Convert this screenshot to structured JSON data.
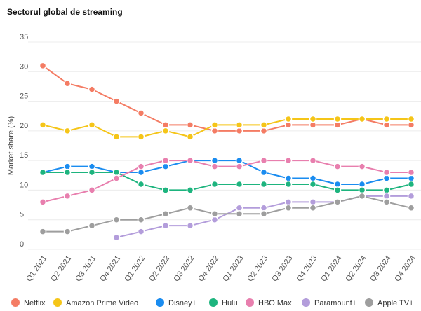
{
  "chart_data": {
    "type": "line",
    "title": "Sectorul global de streaming",
    "xlabel": "",
    "ylabel": "Market share (%)",
    "ylim": [
      0,
      35
    ],
    "yticks": [
      0,
      5,
      10,
      15,
      20,
      25,
      30,
      35
    ],
    "grid": true,
    "legend_position": "bottom",
    "categories": [
      "Q1 2021",
      "Q2 2021",
      "Q3 2021",
      "Q4 2021",
      "Q1 2022",
      "Q2 2022",
      "Q3 2022",
      "Q4 2022",
      "Q1 2023",
      "Q2 2023",
      "Q3 2023",
      "Q4 2023",
      "Q1 2024",
      "Q2 2024",
      "Q3 2024",
      "Q4 2024"
    ],
    "series": [
      {
        "name": "Netflix",
        "color": "#f47c64",
        "values": [
          31,
          28,
          27,
          25,
          23,
          21,
          21,
          20,
          20,
          20,
          21,
          21,
          21,
          22,
          21,
          21
        ]
      },
      {
        "name": "Amazon Prime Video",
        "color": "#f5c518",
        "values": [
          21,
          20,
          21,
          19,
          19,
          20,
          19,
          21,
          21,
          21,
          22,
          22,
          22,
          22,
          22,
          22
        ]
      },
      {
        "name": "Disney+",
        "color": "#1a8cf0",
        "values": [
          13,
          14,
          14,
          13,
          13,
          14,
          15,
          15,
          15,
          13,
          12,
          12,
          11,
          11,
          12,
          12
        ]
      },
      {
        "name": "Hulu",
        "color": "#1db47e",
        "values": [
          13,
          13,
          13,
          13,
          11,
          10,
          10,
          11,
          11,
          11,
          11,
          11,
          10,
          10,
          10,
          11
        ]
      },
      {
        "name": "HBO Max",
        "color": "#e87fae",
        "values": [
          8,
          9,
          10,
          12,
          14,
          15,
          15,
          14,
          14,
          15,
          15,
          15,
          14,
          14,
          13,
          13
        ]
      },
      {
        "name": "Paramount+",
        "color": "#b39ddb",
        "values": [
          null,
          null,
          null,
          2,
          3,
          4,
          4,
          5,
          7,
          7,
          8,
          8,
          8,
          9,
          9,
          9
        ]
      },
      {
        "name": "Apple TV+",
        "color": "#9e9e9e",
        "values": [
          3,
          3,
          4,
          5,
          5,
          6,
          7,
          6,
          6,
          6,
          7,
          7,
          8,
          9,
          8,
          7
        ]
      }
    ]
  }
}
